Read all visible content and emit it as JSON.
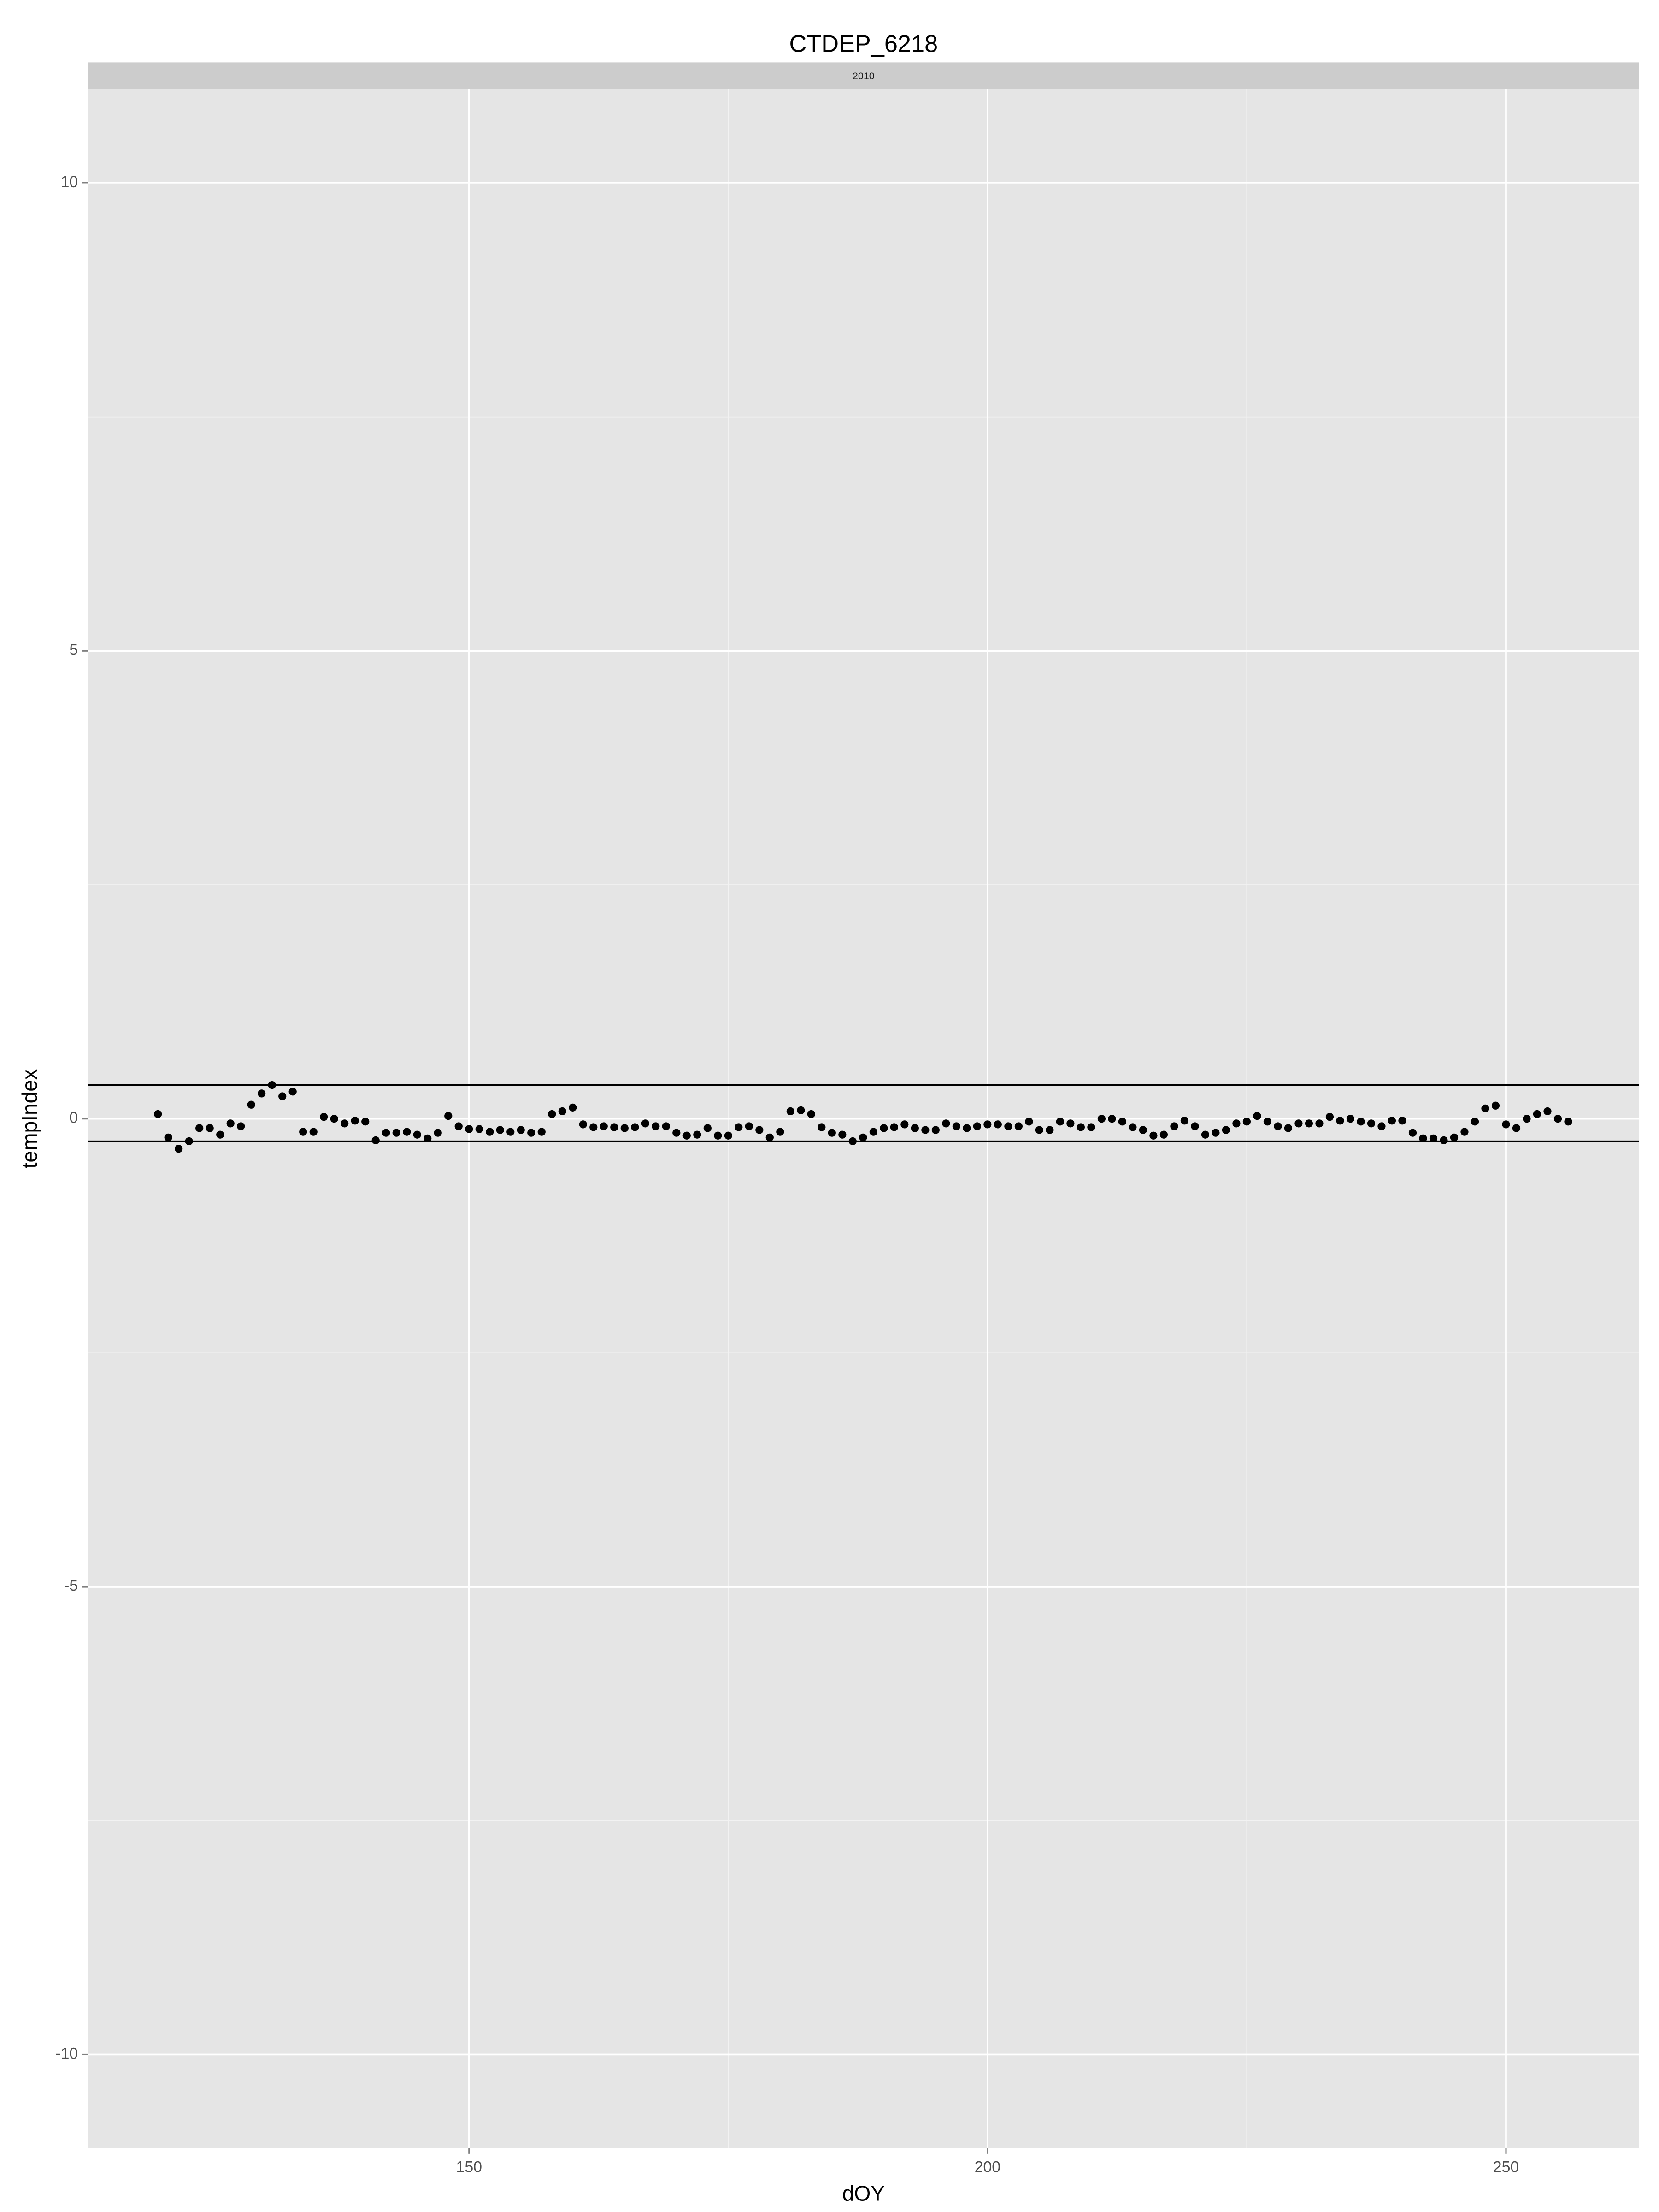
{
  "chart_data": {
    "type": "scatter",
    "title": "CTDEP_6218",
    "facet_label": "2010",
    "x_label": "dOY",
    "y_label": "tempIndex",
    "x": [
      120,
      121,
      122,
      123,
      124,
      125,
      126,
      127,
      128,
      129,
      130,
      131,
      132,
      133,
      134,
      135,
      136,
      137,
      138,
      139,
      140,
      141,
      142,
      143,
      144,
      145,
      146,
      147,
      148,
      149,
      150,
      151,
      152,
      153,
      154,
      155,
      156,
      157,
      158,
      159,
      160,
      161,
      162,
      163,
      164,
      165,
      166,
      167,
      168,
      169,
      170,
      171,
      172,
      173,
      174,
      175,
      176,
      177,
      178,
      179,
      180,
      181,
      182,
      183,
      184,
      185,
      186,
      187,
      188,
      189,
      190,
      191,
      192,
      193,
      194,
      195,
      196,
      197,
      198,
      199,
      200,
      201,
      202,
      203,
      204,
      205,
      206,
      207,
      208,
      209,
      210,
      211,
      212,
      213,
      214,
      215,
      216,
      217,
      218,
      219,
      220,
      221,
      222,
      223,
      224,
      225,
      226,
      227,
      228,
      229,
      230,
      231,
      232,
      233,
      234,
      235,
      236,
      237,
      238,
      239,
      240,
      241,
      242,
      243,
      244,
      245,
      246,
      247,
      248,
      249,
      250,
      251,
      252,
      253,
      254,
      255,
      256
    ],
    "series": [
      {
        "color": "#000000",
        "values": [
          0.05,
          -0.2,
          -0.32,
          -0.24,
          -0.1,
          -0.1,
          -0.17,
          -0.05,
          -0.08,
          0.15,
          0.27,
          0.36,
          0.24,
          0.29,
          -0.14,
          -0.14,
          0.02,
          0,
          -0.05,
          -0.02,
          -0.03,
          -0.23,
          -0.15,
          -0.15,
          -0.14,
          -0.17,
          -0.21,
          -0.15,
          0.03,
          -0.08,
          -0.11,
          -0.11,
          -0.14,
          -0.12,
          -0.14,
          -0.12,
          -0.15,
          -0.14,
          0.05,
          0.08,
          0.12,
          -0.06,
          -0.09,
          -0.08,
          -0.09,
          -0.1,
          -0.09,
          -0.05,
          -0.08,
          -0.08,
          -0.15,
          -0.18,
          -0.17,
          -0.1,
          -0.18,
          -0.18,
          -0.09,
          -0.08,
          -0.12,
          -0.2,
          -0.14,
          0.08,
          0.09,
          0.05,
          -0.09,
          -0.15,
          -0.17,
          -0.24,
          -0.2,
          -0.14,
          -0.1,
          -0.09,
          -0.06,
          -0.1,
          -0.12,
          -0.12,
          -0.05,
          -0.08,
          -0.1,
          -0.08,
          -0.06,
          -0.06,
          -0.08,
          -0.08,
          -0.03,
          -0.12,
          -0.12,
          -0.03,
          -0.05,
          -0.09,
          -0.09,
          0,
          0,
          -0.03,
          -0.09,
          -0.12,
          -0.18,
          -0.17,
          -0.08,
          -0.02,
          -0.08,
          -0.17,
          -0.15,
          -0.12,
          -0.05,
          -0.03,
          0.03,
          -0.03,
          -0.08,
          -0.1,
          -0.05,
          -0.05,
          -0.05,
          0.02,
          -0.02,
          0,
          -0.03,
          -0.05,
          -0.08,
          -0.02,
          -0.02,
          -0.15,
          -0.21,
          -0.21,
          -0.23,
          -0.2,
          -0.14,
          -0.03,
          0.11,
          0.14,
          -0.06,
          -0.1,
          0,
          0.05,
          0.08,
          0,
          -0.03
        ]
      }
    ],
    "hlines": [
      0.36,
      -0.24
    ],
    "xlim": [
      113.25,
      262.84
    ],
    "ylim": [
      -11,
      11
    ],
    "xticks": [
      150,
      200,
      250
    ],
    "yticks": [
      -10,
      -5,
      0,
      5,
      10
    ],
    "grid": true
  }
}
